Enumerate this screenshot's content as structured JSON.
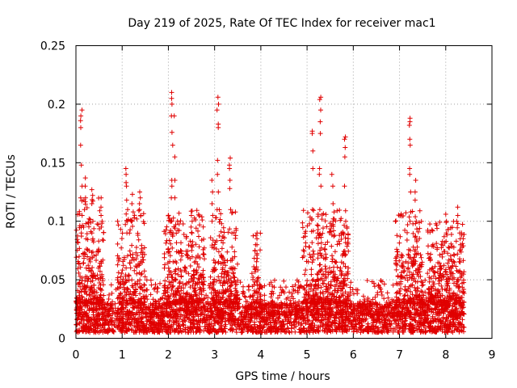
{
  "chart_data": {
    "type": "scatter",
    "title": "Day 219 of 2025, Rate Of TEC Index for receiver mac1",
    "xlabel": "GPS time / hours",
    "ylabel": "ROTI / TECUs",
    "xlim": [
      0,
      9
    ],
    "ylim": [
      0,
      0.25
    ],
    "xticks": [
      0,
      1,
      2,
      3,
      4,
      5,
      6,
      7,
      8,
      9
    ],
    "yticks": [
      0,
      0.05,
      0.1,
      0.15,
      0.2,
      0.25
    ],
    "ytick_labels": [
      "0",
      "0.05",
      "0.1",
      "0.15",
      "0.2",
      "0.25"
    ],
    "grid": true,
    "marker": "plus",
    "color": "#e00000",
    "x_data_range": [
      0,
      8.4
    ],
    "baseline_band": [
      0.005,
      0.03
    ],
    "activity_segments": [
      {
        "start": 0.0,
        "end": 0.6,
        "amplitude": 0.09,
        "density": 1.3
      },
      {
        "start": 0.9,
        "end": 1.5,
        "amplitude": 0.08,
        "density": 1.0
      },
      {
        "start": 1.9,
        "end": 2.8,
        "amplitude": 0.08,
        "density": 1.2
      },
      {
        "start": 2.9,
        "end": 3.5,
        "amplitude": 0.08,
        "density": 1.1
      },
      {
        "start": 3.8,
        "end": 4.0,
        "amplitude": 0.06,
        "density": 0.8
      },
      {
        "start": 4.9,
        "end": 5.9,
        "amplitude": 0.08,
        "density": 1.3
      },
      {
        "start": 6.9,
        "end": 7.5,
        "amplitude": 0.08,
        "density": 1.1
      },
      {
        "start": 7.6,
        "end": 8.4,
        "amplitude": 0.07,
        "density": 1.2
      }
    ],
    "peak_columns": [
      {
        "x": 0.12,
        "values": [
          0.195,
          0.19,
          0.186,
          0.18,
          0.165,
          0.148,
          0.13,
          0.12,
          0.105,
          0.09
        ]
      },
      {
        "x": 0.2,
        "values": [
          0.137,
          0.13,
          0.12,
          0.11,
          0.098,
          0.085
        ]
      },
      {
        "x": 0.35,
        "values": [
          0.127,
          0.122,
          0.115,
          0.1,
          0.09
        ]
      },
      {
        "x": 0.55,
        "values": [
          0.12,
          0.112,
          0.105,
          0.1,
          0.095
        ]
      },
      {
        "x": 1.1,
        "values": [
          0.145,
          0.14,
          0.133,
          0.13,
          0.118,
          0.11,
          0.1,
          0.09
        ]
      },
      {
        "x": 1.22,
        "values": [
          0.123,
          0.115,
          0.108,
          0.1
        ]
      },
      {
        "x": 1.38,
        "values": [
          0.125,
          0.12,
          0.115,
          0.11,
          0.105
        ]
      },
      {
        "x": 2.08,
        "values": [
          0.21,
          0.205,
          0.2,
          0.19,
          0.176,
          0.165,
          0.135,
          0.13,
          0.12,
          0.1,
          0.09
        ]
      },
      {
        "x": 2.13,
        "values": [
          0.19,
          0.155,
          0.135,
          0.12
        ]
      },
      {
        "x": 2.5,
        "values": [
          0.105,
          0.1,
          0.095,
          0.09
        ]
      },
      {
        "x": 2.95,
        "values": [
          0.135,
          0.125,
          0.115,
          0.105,
          0.1
        ]
      },
      {
        "x": 3.07,
        "values": [
          0.206,
          0.2,
          0.195,
          0.183,
          0.18,
          0.152,
          0.14,
          0.125,
          0.11
        ]
      },
      {
        "x": 3.33,
        "values": [
          0.154,
          0.148,
          0.145,
          0.135,
          0.128,
          0.11
        ]
      },
      {
        "x": 3.9,
        "values": [
          0.09,
          0.088,
          0.085,
          0.08
        ]
      },
      {
        "x": 5.12,
        "values": [
          0.177,
          0.175,
          0.16,
          0.145,
          0.11
        ]
      },
      {
        "x": 5.28,
        "values": [
          0.206,
          0.204,
          0.195,
          0.185,
          0.175,
          0.145,
          0.14,
          0.13,
          0.11
        ]
      },
      {
        "x": 5.55,
        "values": [
          0.14,
          0.13,
          0.115,
          0.1
        ]
      },
      {
        "x": 5.82,
        "values": [
          0.172,
          0.17,
          0.163,
          0.155,
          0.13,
          0.1
        ]
      },
      {
        "x": 7.22,
        "values": [
          0.188,
          0.185,
          0.182,
          0.17,
          0.165,
          0.145,
          0.14,
          0.125,
          0.1
        ]
      },
      {
        "x": 7.35,
        "values": [
          0.135,
          0.125,
          0.118,
          0.1,
          0.098
        ]
      },
      {
        "x": 8.0,
        "values": [
          0.106,
          0.1,
          0.09
        ]
      },
      {
        "x": 8.25,
        "values": [
          0.112,
          0.105,
          0.1,
          0.098
        ]
      },
      {
        "x": 8.3,
        "values": [
          0.09,
          0.085,
          0.08
        ]
      }
    ]
  }
}
